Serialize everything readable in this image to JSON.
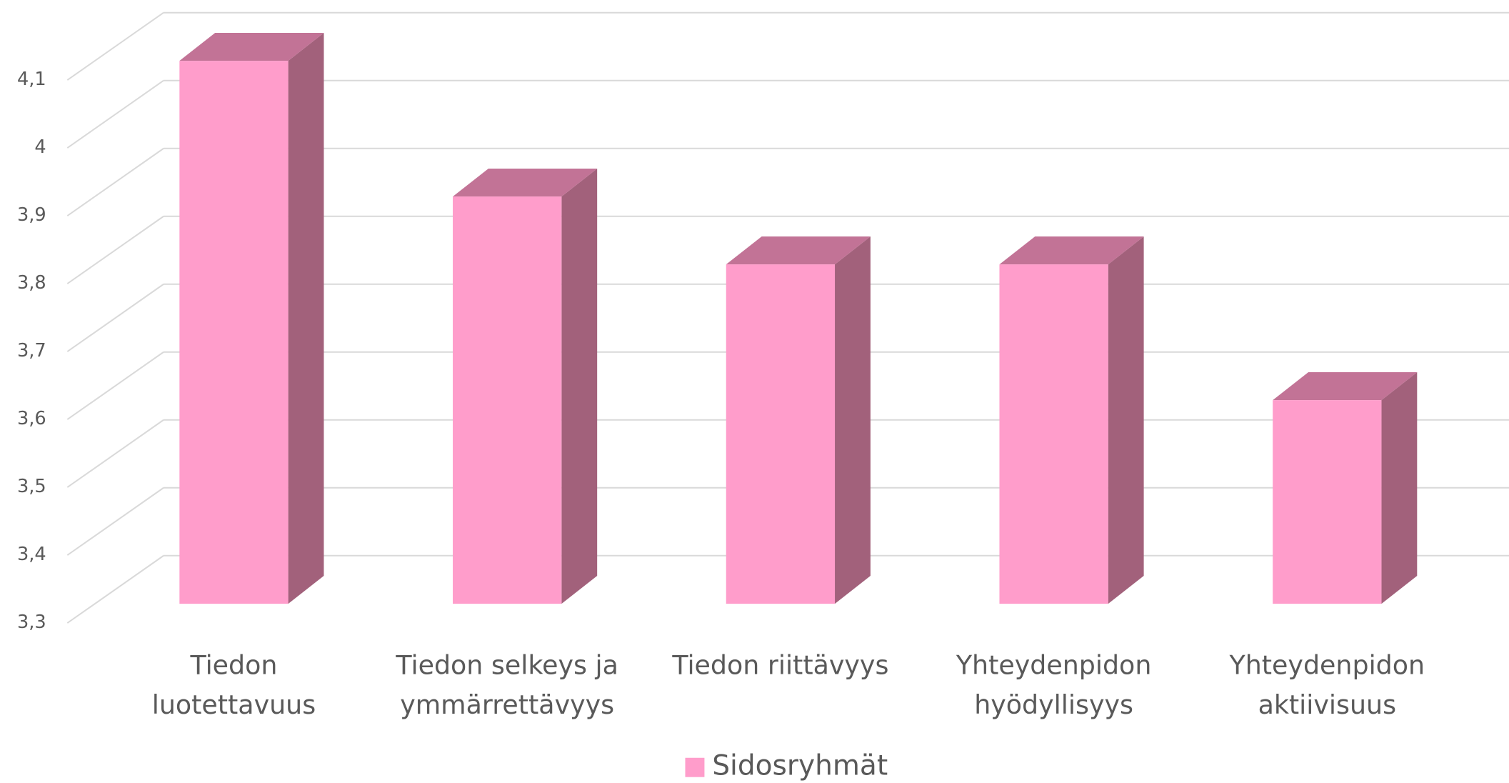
{
  "chart_data": {
    "type": "bar3d",
    "categories": [
      "Tiedon luotettavuus",
      "Tiedon selkeys ja ymmärrettävyys",
      "Tiedon riittävyys",
      "Yhteydenpidon hyödyllisyys",
      "Yhteydenpidon aktiivisuus"
    ],
    "series": [
      {
        "name": "Sidosryhmät",
        "color": "#ff9dcb",
        "values": [
          4.1,
          3.9,
          3.8,
          3.8,
          3.6
        ]
      }
    ],
    "ylim": [
      3.3,
      4.1
    ],
    "yticks": [
      {
        "value": 3.3,
        "label": "3,3"
      },
      {
        "value": 3.4,
        "label": "3,4"
      },
      {
        "value": 3.5,
        "label": "3,5"
      },
      {
        "value": 3.6,
        "label": "3,6"
      },
      {
        "value": 3.7,
        "label": "3,7"
      },
      {
        "value": 3.8,
        "label": "3,8"
      },
      {
        "value": 3.9,
        "label": "3,9"
      },
      4,
      {
        "value": 4.1,
        "label": "4,1"
      }
    ],
    "grid": true,
    "legend": "bottom"
  }
}
